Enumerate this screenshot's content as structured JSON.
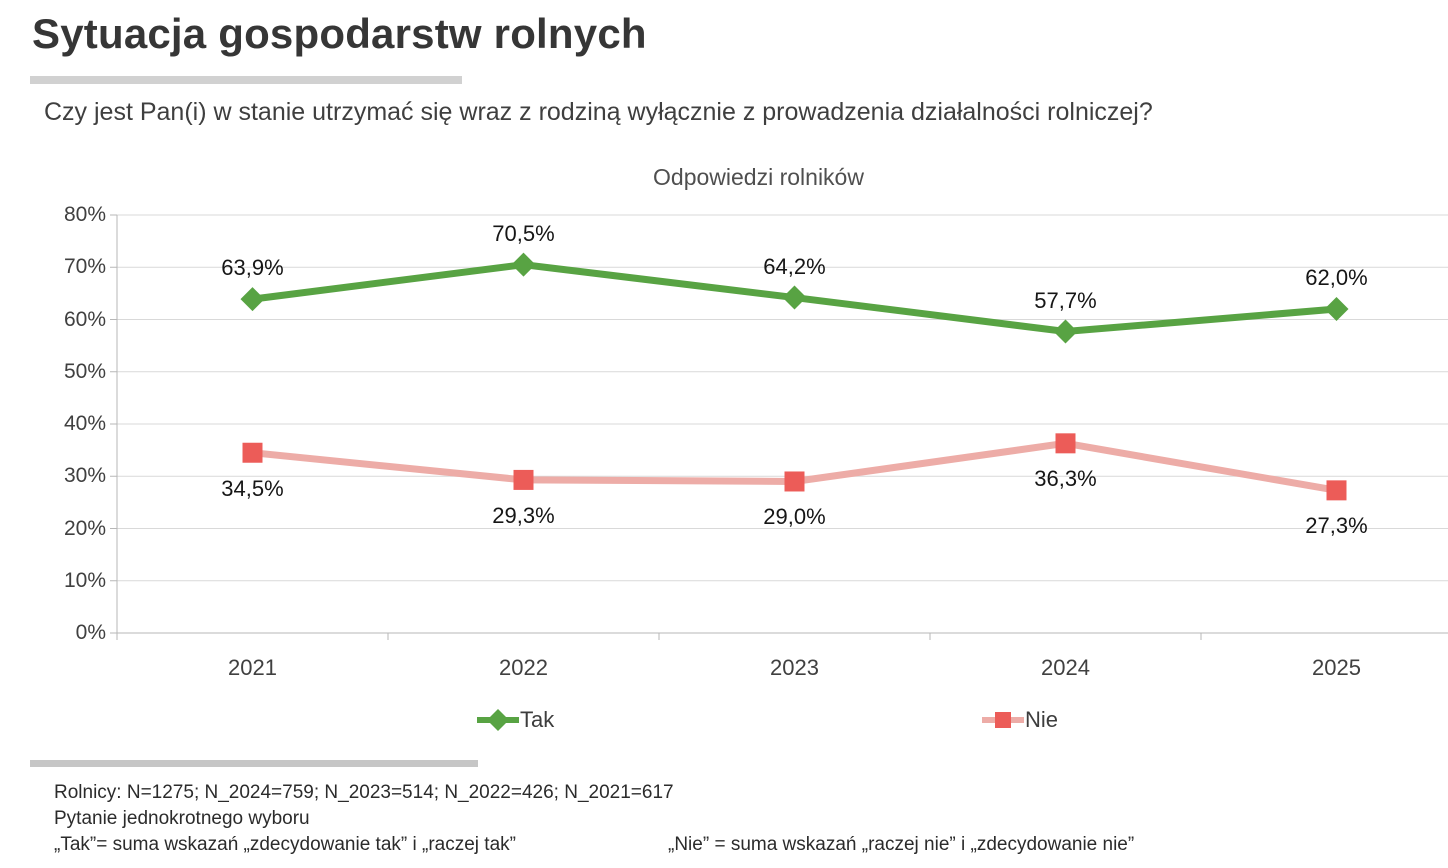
{
  "header": {
    "title": "Sytuacja gospodarstw rolnych",
    "question": "Czy jest Pan(i) w stanie utrzymać się wraz z rodziną wyłącznie z prowadzenia działalności rolniczej?"
  },
  "chart_data": {
    "type": "line",
    "title": "Odpowiedzi rolników",
    "categories": [
      "2021",
      "2022",
      "2023",
      "2024",
      "2025"
    ],
    "series": [
      {
        "name": "Tak",
        "values": [
          63.9,
          70.5,
          64.2,
          57.7,
          62.0
        ],
        "labels": [
          "63,9%",
          "70,5%",
          "64,2%",
          "57,7%",
          "62,0%"
        ],
        "color": "#58a343",
        "line_color": "#58a343",
        "marker": "diamond",
        "label_position": "above"
      },
      {
        "name": "Nie",
        "values": [
          34.5,
          29.3,
          29.0,
          36.3,
          27.3
        ],
        "labels": [
          "34,5%",
          "29,3%",
          "29,0%",
          "36,3%",
          "27,3%"
        ],
        "color": "#ec5c58",
        "line_color": "#edaca7",
        "marker": "square",
        "label_position": "below"
      }
    ],
    "ylim": [
      0,
      80
    ],
    "y_tick_step": 10,
    "y_tick_labels": [
      "0%",
      "10%",
      "20%",
      "30%",
      "40%",
      "50%",
      "60%",
      "70%",
      "80%"
    ],
    "grid": true,
    "legend_position": "bottom",
    "grid_color": "#d9d9d9",
    "axis_color": "#b7b7b7"
  },
  "footer": {
    "line1": "Rolnicy: N=1275; N_2024=759; N_2023=514; N_2022=426; N_2021=617",
    "line2": "Pytanie jednokrotnego wyboru",
    "tak_definition": "„Tak”= suma wskazań „zdecydowanie tak” i „raczej tak”",
    "nie_definition": "„Nie” = suma wskazań „raczej nie” i „zdecydowanie nie”"
  }
}
